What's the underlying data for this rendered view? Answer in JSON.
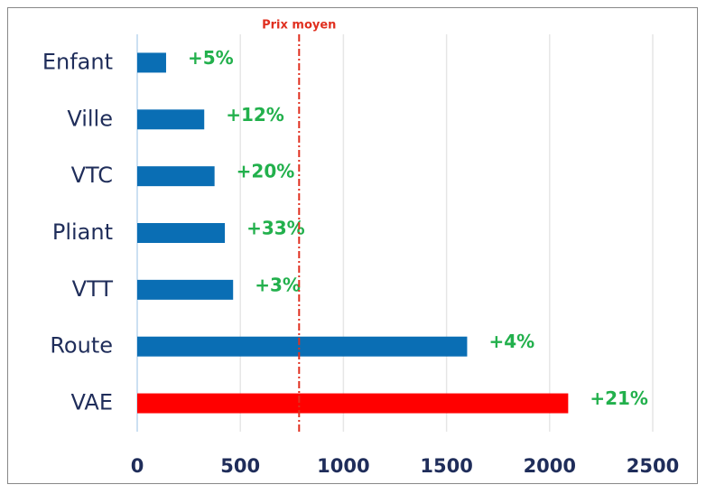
{
  "chart_data": {
    "type": "hbar",
    "categories": [
      "Enfant",
      "Ville",
      "VTC",
      "Pliant",
      "VTT",
      "Route",
      "VAE"
    ],
    "values": [
      140,
      325,
      375,
      425,
      465,
      1600,
      2090
    ],
    "colors": [
      "#0a6eb4",
      "#0a6eb4",
      "#0a6eb4",
      "#0a6eb4",
      "#0a6eb4",
      "#0a6eb4",
      "#ff0000"
    ],
    "annotations": [
      "+5%",
      "+12%",
      "+20%",
      "+33%",
      "+3%",
      "+4%",
      "+21%"
    ],
    "reference_line": {
      "value": 785,
      "label": "Prix moyen",
      "color": "#e03020"
    },
    "xlim": [
      0,
      2500
    ],
    "xticks": [
      0,
      500,
      1000,
      1500,
      2000,
      2500
    ],
    "grid": true
  }
}
